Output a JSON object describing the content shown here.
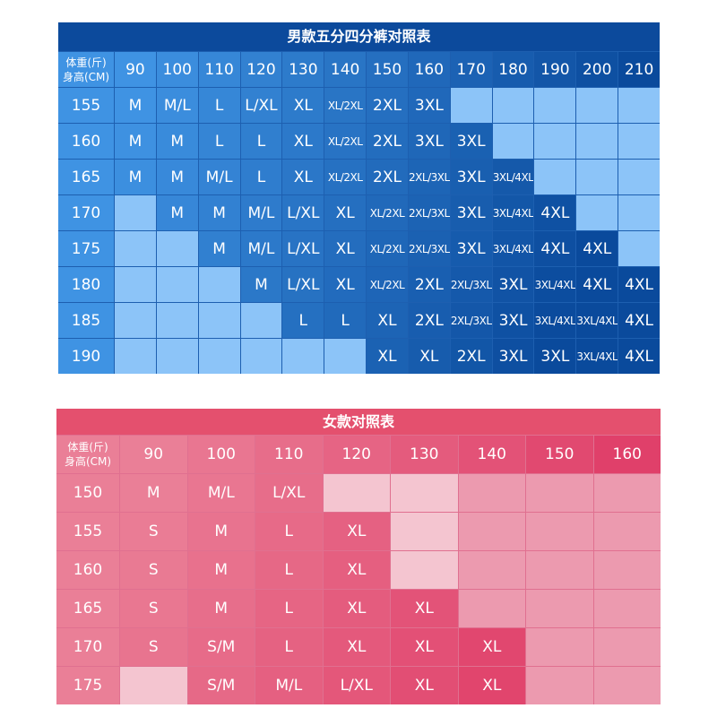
{
  "men": {
    "title": "男款五分四分裤对照表",
    "corner": [
      "体重(斤)",
      "身高(CM)"
    ],
    "weights": [
      "90",
      "100",
      "110",
      "120",
      "130",
      "140",
      "150",
      "160",
      "170",
      "180",
      "190",
      "200",
      "210"
    ],
    "rows": [
      {
        "h": "155",
        "v": [
          "M",
          "M/L",
          "L",
          "L/XL",
          "XL",
          "XL/2XL",
          "2XL",
          "3XL",
          "",
          "",
          "",
          "",
          ""
        ]
      },
      {
        "h": "160",
        "v": [
          "M",
          "M",
          "L",
          "L",
          "XL",
          "XL/2XL",
          "2XL",
          "3XL",
          "3XL",
          "",
          "",
          "",
          ""
        ]
      },
      {
        "h": "165",
        "v": [
          "M",
          "M",
          "M/L",
          "L",
          "XL",
          "XL/2XL",
          "2XL",
          "2XL/3XL",
          "3XL",
          "3XL/4XL",
          "",
          "",
          ""
        ]
      },
      {
        "h": "170",
        "v": [
          "",
          "M",
          "M",
          "M/L",
          "L/XL",
          "XL",
          "XL/2XL",
          "2XL/3XL",
          "3XL",
          "3XL/4XL",
          "4XL",
          "",
          ""
        ]
      },
      {
        "h": "175",
        "v": [
          "",
          "",
          "M",
          "M/L",
          "L/XL",
          "XL",
          "XL/2XL",
          "2XL/3XL",
          "3XL",
          "3XL/4XL",
          "4XL",
          "4XL",
          ""
        ]
      },
      {
        "h": "180",
        "v": [
          "",
          "",
          "",
          "M",
          "L/XL",
          "XL",
          "XL/2XL",
          "2XL",
          "2XL/3XL",
          "3XL",
          "3XL/4XL",
          "4XL",
          "4XL"
        ]
      },
      {
        "h": "185",
        "v": [
          "",
          "",
          "",
          "",
          "L",
          "L",
          "XL",
          "2XL",
          "2XL/3XL",
          "3XL",
          "3XL/4XL",
          "3XL/4XL",
          "4XL"
        ]
      },
      {
        "h": "190",
        "v": [
          "",
          "",
          "",
          "",
          "",
          "",
          "XL",
          "XL",
          "2XL",
          "3XL",
          "3XL",
          "3XL/4XL",
          "4XL"
        ]
      }
    ]
  },
  "women": {
    "title": "女款对照表",
    "corner": [
      "体重(斤)",
      "身高(CM)"
    ],
    "weights": [
      "90",
      "100",
      "110",
      "120",
      "130",
      "140",
      "150",
      "160"
    ],
    "rows": [
      {
        "h": "150",
        "v": [
          "M",
          "M/L",
          "L/XL",
          "#lt",
          "#lt",
          "#area",
          "#area",
          "#area"
        ]
      },
      {
        "h": "155",
        "v": [
          "S",
          "M",
          "L",
          "XL",
          "#lt",
          "#area",
          "#area",
          "#area"
        ]
      },
      {
        "h": "160",
        "v": [
          "S",
          "M",
          "L",
          "XL",
          "#lt",
          "#area",
          "#area",
          "#area"
        ]
      },
      {
        "h": "165",
        "v": [
          "S",
          "M",
          "L",
          "XL",
          "XL",
          "#area",
          "#area",
          "#area"
        ]
      },
      {
        "h": "170",
        "v": [
          "S",
          "S/M",
          "L",
          "XL",
          "XL",
          "XL",
          "#area",
          "#area"
        ]
      },
      {
        "h": "175",
        "v": [
          "#lt",
          "S/M",
          "M/L",
          "L/XL",
          "XL",
          "XL",
          "#area",
          "#area"
        ]
      }
    ]
  },
  "colors": {
    "men_light": "#3f93e3",
    "men_dark": "#0a4a9c",
    "women_light": "#ea7f97",
    "women_dark": "#e0406a"
  }
}
